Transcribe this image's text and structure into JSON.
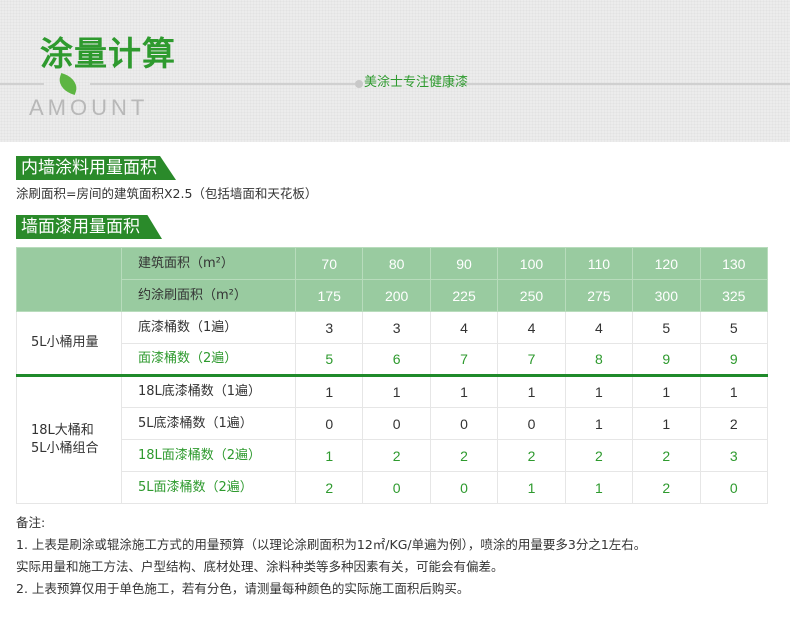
{
  "header": {
    "title": "涂量计算",
    "subtitle": "AMOUNT",
    "slogan": "美涂士专注健康漆"
  },
  "section1": {
    "title": "内墙涂料用量面积",
    "desc": "涂刷面积=房间的建筑面积X2.5（包括墙面和天花板）"
  },
  "section2": {
    "title": "墙面漆用量面积"
  },
  "table": {
    "header_rows": [
      {
        "label": "建筑面积（m²）",
        "values": [
          "70",
          "80",
          "90",
          "100",
          "110",
          "120",
          "130"
        ]
      },
      {
        "label": "约涂刷面积（m²）",
        "values": [
          "175",
          "200",
          "225",
          "250",
          "275",
          "300",
          "325"
        ]
      }
    ],
    "groups": [
      {
        "name": "5L小桶用量",
        "rows": [
          {
            "label": "底漆桶数（1遍）",
            "values": [
              "3",
              "3",
              "4",
              "4",
              "4",
              "5",
              "5"
            ],
            "green": false
          },
          {
            "label": "面漆桶数（2遍）",
            "values": [
              "5",
              "6",
              "7",
              "7",
              "8",
              "9",
              "9"
            ],
            "green": true
          }
        ]
      },
      {
        "name": "18L大桶和\n5L小桶组合",
        "rows": [
          {
            "label": "18L底漆桶数（1遍）",
            "values": [
              "1",
              "1",
              "1",
              "1",
              "1",
              "1",
              "1"
            ],
            "green": false
          },
          {
            "label": "5L底漆桶数（1遍）",
            "values": [
              "0",
              "0",
              "0",
              "0",
              "1",
              "1",
              "2"
            ],
            "green": false
          },
          {
            "label": "18L面漆桶数（2遍）",
            "values": [
              "1",
              "2",
              "2",
              "2",
              "2",
              "2",
              "3"
            ],
            "green": true
          },
          {
            "label": "5L面漆桶数（2遍）",
            "values": [
              "2",
              "0",
              "0",
              "1",
              "1",
              "2",
              "0"
            ],
            "green": true
          }
        ]
      }
    ]
  },
  "notes": {
    "title": "备注:",
    "lines": [
      "1. 上表是刷涂或辊涂施工方式的用量预算（以理论涂刷面积为12㎡/KG/单遍为例），喷涂的用量要多3分之1左右。",
      "实际用量和施工方法、户型结构、底材处理、涂料种类等多种因素有关，可能会有偏差。",
      "2. 上表预算仅用于单色施工，若有分色，请测量每种颜色的实际施工面积后购买。"
    ]
  },
  "colors": {
    "brand_green": "#2a8a2a",
    "header_green": "#99cba0",
    "text_green": "#2e9a2e"
  }
}
